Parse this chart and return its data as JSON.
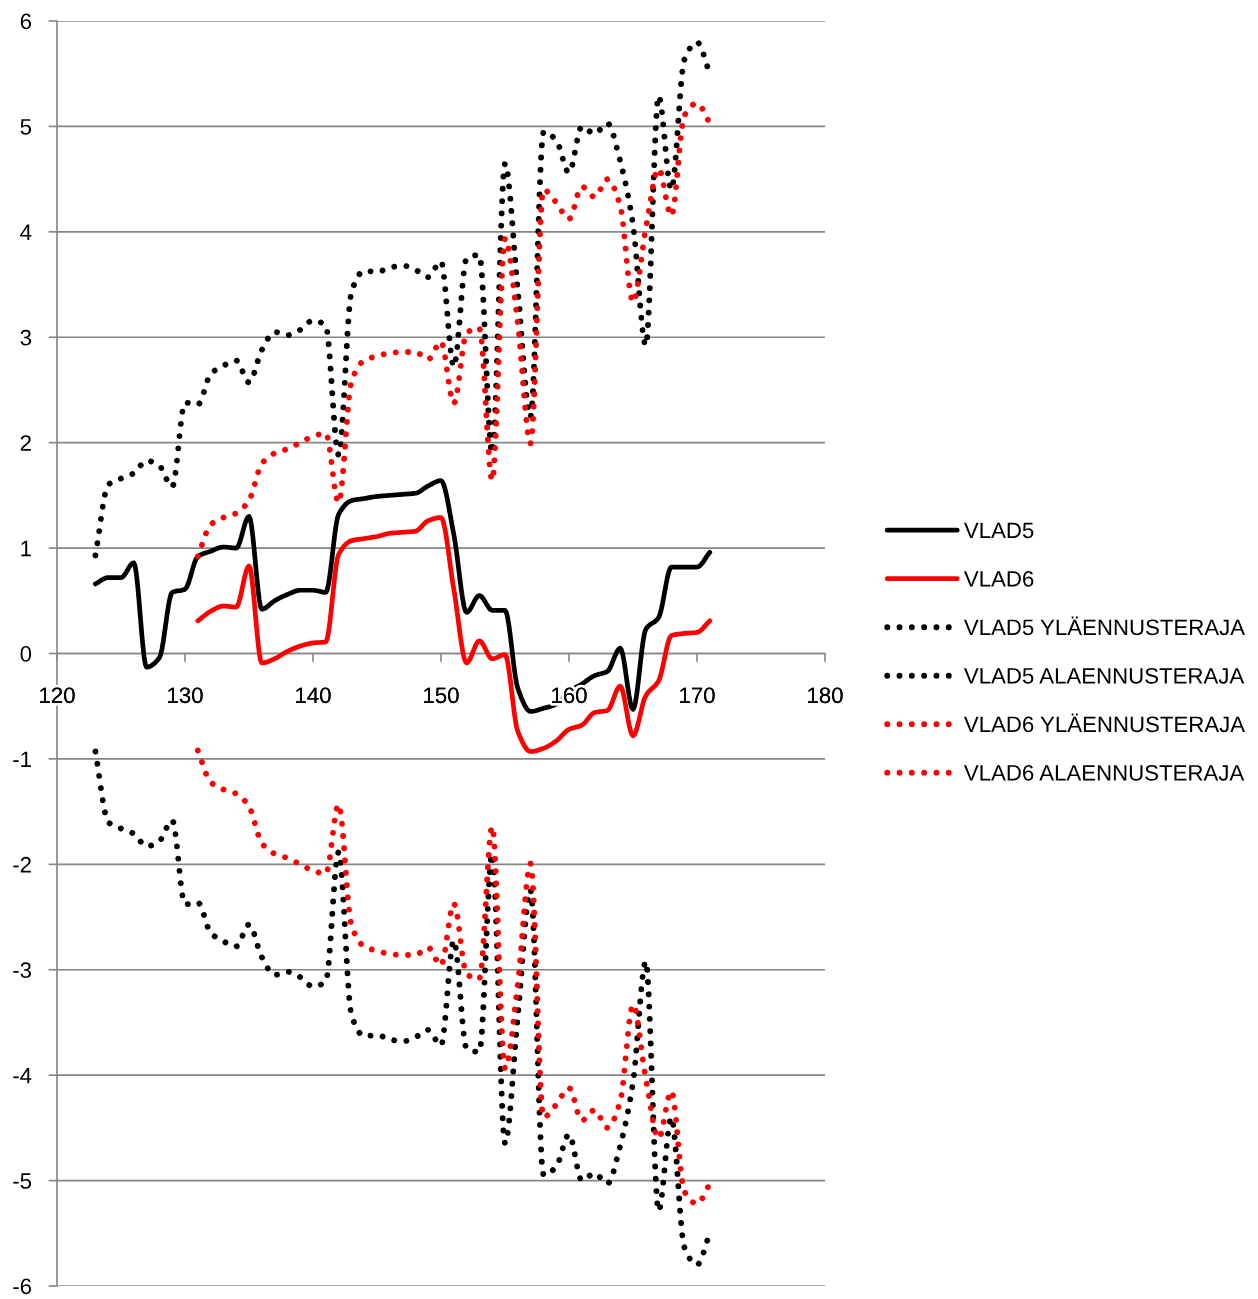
{
  "chart_data": {
    "type": "line",
    "x": [
      123,
      124,
      125,
      126,
      127,
      128,
      129,
      130,
      131,
      132,
      133,
      134,
      135,
      136,
      137,
      138,
      139,
      140,
      141,
      142,
      143,
      144,
      145,
      146,
      147,
      148,
      149,
      150,
      151,
      152,
      153,
      154,
      155,
      156,
      157,
      158,
      159,
      160,
      161,
      162,
      163,
      164,
      165,
      166,
      167,
      168,
      169,
      170,
      171
    ],
    "series": [
      {
        "name": "VLAD5",
        "color": "#000000",
        "line_style": "solid",
        "values": [
          0.66,
          0.72,
          0.72,
          0.86,
          -0.13,
          -0.04,
          0.58,
          0.61,
          0.92,
          0.97,
          1.01,
          1.0,
          1.3,
          0.42,
          0.5,
          0.56,
          0.6,
          0.6,
          0.58,
          1.32,
          1.45,
          1.47,
          1.49,
          1.5,
          1.51,
          1.52,
          1.59,
          1.64,
          1.13,
          0.39,
          0.55,
          0.41,
          0.41,
          -0.33,
          -0.55,
          -0.52,
          -0.48,
          -0.36,
          -0.29,
          -0.21,
          -0.17,
          0.05,
          -0.53,
          0.23,
          0.34,
          0.82,
          0.82,
          0.82,
          0.96
        ]
      },
      {
        "name": "VLAD6",
        "color": "#ff0000",
        "line_style": "solid",
        "values": [
          null,
          null,
          null,
          null,
          null,
          null,
          null,
          null,
          0.31,
          0.4,
          0.45,
          0.44,
          0.83,
          -0.09,
          -0.05,
          0.02,
          0.07,
          0.1,
          0.11,
          0.94,
          1.07,
          1.09,
          1.11,
          1.14,
          1.15,
          1.16,
          1.26,
          1.29,
          0.61,
          -0.09,
          0.12,
          -0.05,
          -0.01,
          -0.74,
          -0.93,
          -0.9,
          -0.83,
          -0.72,
          -0.68,
          -0.56,
          -0.54,
          -0.31,
          -0.78,
          -0.4,
          -0.26,
          0.17,
          0.19,
          0.2,
          0.31
        ]
      },
      {
        "name": "VLAD5 YLÄENNUSTERAJA",
        "color": "#000000",
        "line_style": "dotted",
        "values": [
          0.93,
          1.6,
          1.66,
          1.71,
          1.83,
          1.78,
          1.58,
          2.38,
          2.36,
          2.65,
          2.73,
          2.78,
          2.57,
          2.88,
          3.05,
          3.02,
          3.07,
          3.16,
          3.11,
          1.88,
          3.43,
          3.63,
          3.62,
          3.66,
          3.68,
          3.64,
          3.57,
          3.72,
          2.72,
          3.75,
          3.78,
          1.9,
          4.65,
          3.44,
          2.24,
          4.95,
          4.87,
          4.56,
          5.0,
          4.93,
          5.03,
          4.67,
          4.07,
          2.92,
          5.29,
          4.4,
          5.63,
          5.8,
          5.5
        ]
      },
      {
        "name": "VLAD5 ALAENNUSTERAJA",
        "color": "#000000",
        "line_style": "dotted",
        "values": [
          -0.93,
          -1.6,
          -1.66,
          -1.71,
          -1.83,
          -1.78,
          -1.58,
          -2.38,
          -2.36,
          -2.65,
          -2.73,
          -2.78,
          -2.57,
          -2.88,
          -3.05,
          -3.02,
          -3.07,
          -3.16,
          -3.11,
          -1.88,
          -3.43,
          -3.63,
          -3.62,
          -3.66,
          -3.68,
          -3.64,
          -3.57,
          -3.72,
          -2.72,
          -3.75,
          -3.78,
          -1.9,
          -4.65,
          -3.44,
          -2.24,
          -4.95,
          -4.87,
          -4.56,
          -5.0,
          -4.93,
          -5.03,
          -4.67,
          -4.07,
          -2.92,
          -5.29,
          -4.4,
          -5.63,
          -5.8,
          -5.5
        ]
      },
      {
        "name": "VLAD6 YLÄENNUSTERAJA",
        "color": "#ff0000",
        "line_style": "dotted",
        "values": [
          null,
          null,
          null,
          null,
          null,
          null,
          null,
          null,
          0.92,
          1.22,
          1.29,
          1.33,
          1.45,
          1.8,
          1.9,
          1.94,
          2.0,
          2.06,
          2.09,
          1.43,
          2.58,
          2.78,
          2.82,
          2.85,
          2.86,
          2.86,
          2.79,
          2.96,
          2.37,
          3.04,
          3.09,
          1.64,
          3.94,
          3.13,
          1.99,
          4.4,
          4.28,
          4.12,
          4.43,
          4.33,
          4.5,
          4.25,
          3.33,
          4.03,
          4.6,
          4.15,
          5.1,
          5.22,
          5.03
        ]
      },
      {
        "name": "VLAD6 ALAENNUSTERAJA",
        "color": "#ff0000",
        "line_style": "dotted",
        "values": [
          null,
          null,
          null,
          null,
          null,
          null,
          null,
          null,
          -0.92,
          -1.22,
          -1.29,
          -1.33,
          -1.45,
          -1.8,
          -1.9,
          -1.94,
          -2.0,
          -2.06,
          -2.09,
          -1.43,
          -2.58,
          -2.78,
          -2.82,
          -2.85,
          -2.86,
          -2.86,
          -2.79,
          -2.96,
          -2.37,
          -3.04,
          -3.09,
          -1.64,
          -3.94,
          -3.13,
          -1.99,
          -4.4,
          -4.28,
          -4.12,
          -4.43,
          -4.33,
          -4.5,
          -4.25,
          -3.33,
          -4.03,
          -4.6,
          -4.15,
          -5.1,
          -5.22,
          -5.03
        ]
      }
    ],
    "xlim": [
      120,
      180
    ],
    "xticks": [
      120,
      130,
      140,
      150,
      160,
      170,
      180
    ],
    "ylim": [
      -6,
      6
    ],
    "yticks": [
      -6,
      -5,
      -4,
      -3,
      -2,
      -1,
      0,
      1,
      2,
      3,
      4,
      5,
      6
    ],
    "grid": "y",
    "legend": "right"
  }
}
